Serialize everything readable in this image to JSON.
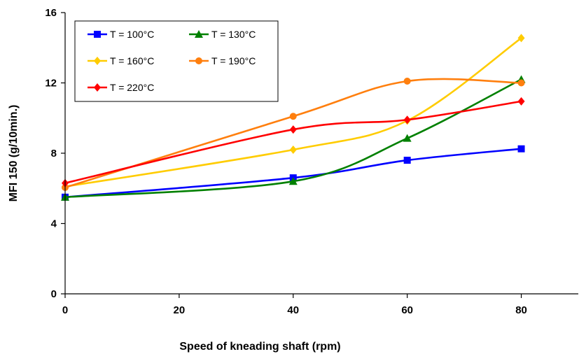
{
  "chart_data": {
    "type": "line",
    "title": "",
    "xlabel": "Speed of kneading shaft  (rpm)",
    "ylabel": "MFI 150  (g/10min.)",
    "xlim": [
      0,
      90
    ],
    "ylim": [
      0,
      16
    ],
    "x_ticks": [
      0,
      20,
      40,
      60,
      80
    ],
    "y_ticks": [
      0,
      4,
      8,
      12,
      16
    ],
    "grid": false,
    "legend_position": "top-left",
    "smooth": true,
    "x": [
      0,
      40,
      60,
      80
    ],
    "series": [
      {
        "name": "T = 100°C",
        "color": "#0000ff",
        "marker": "square",
        "values": [
          5.5,
          6.6,
          7.6,
          8.25
        ]
      },
      {
        "name": "T = 130°C",
        "color": "#008000",
        "marker": "triangle",
        "values": [
          5.5,
          6.4,
          8.85,
          12.2
        ]
      },
      {
        "name": "T = 160°C",
        "color": "#ffcc00",
        "marker": "diamond",
        "values": [
          6.1,
          8.2,
          9.85,
          14.55
        ]
      },
      {
        "name": "T = 190°C",
        "color": "#ff7f0e",
        "marker": "circle",
        "values": [
          6.05,
          10.1,
          12.1,
          12.0
        ]
      },
      {
        "name": "T = 220°C",
        "color": "#ff0000",
        "marker": "diamond",
        "values": [
          6.3,
          9.35,
          9.9,
          10.95
        ]
      }
    ]
  }
}
